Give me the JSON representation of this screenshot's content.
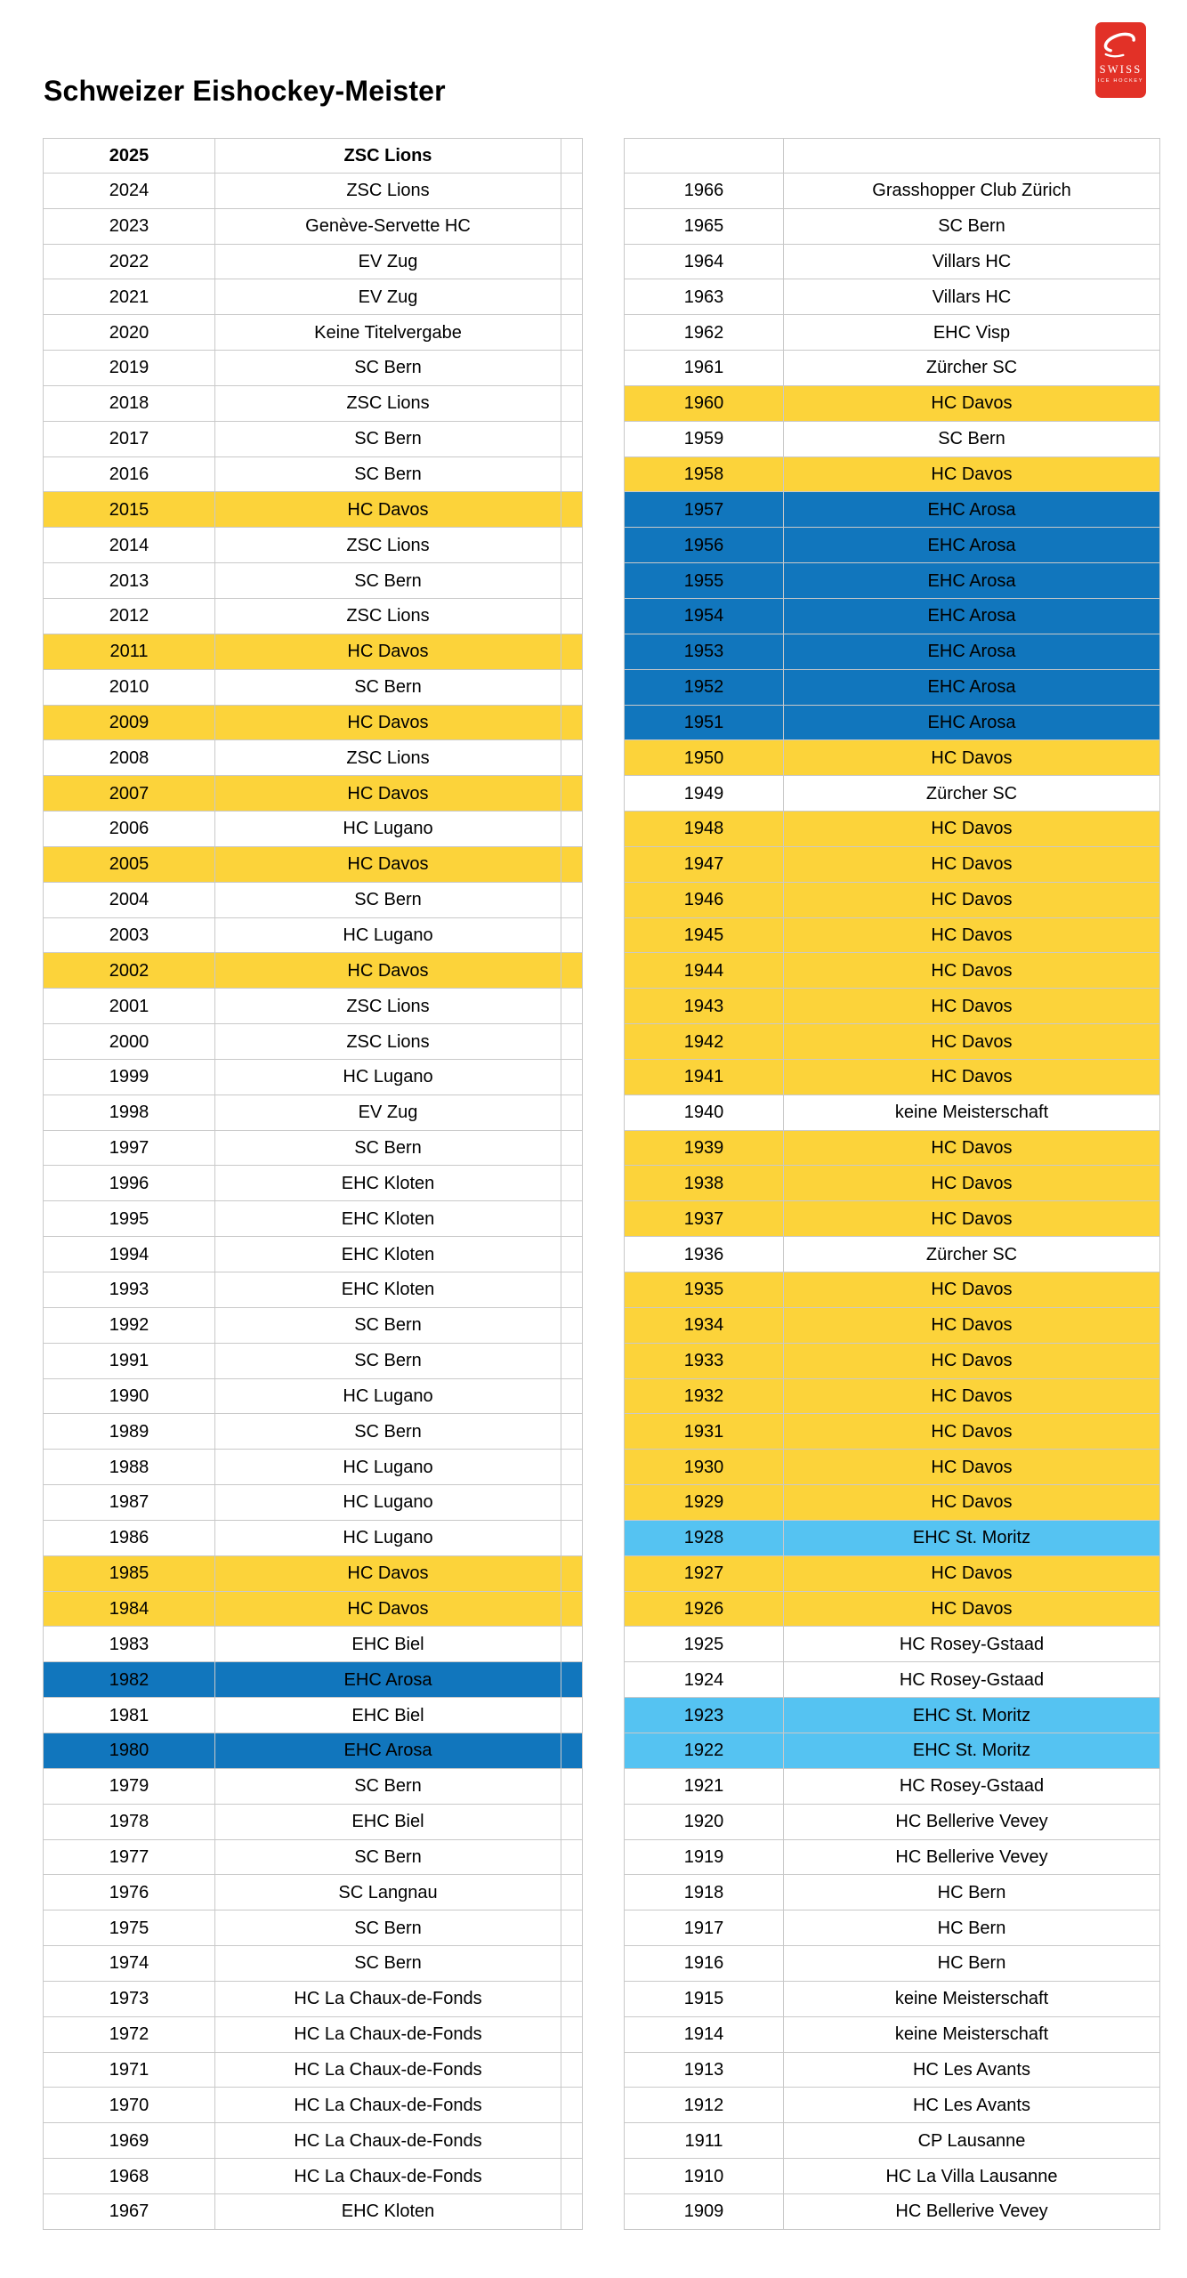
{
  "page": {
    "title": "Schweizer Eishockey-Meister",
    "background": "#ffffff"
  },
  "logo": {
    "line1": "SWISS",
    "line2": "ICE HOCKEY",
    "background": "#e23127",
    "foreground": "#ffffff"
  },
  "colors": {
    "yellow": "#fcd33a",
    "blue": "#1176bd",
    "lightblue": "#55c3f2",
    "border": "#c9c9c9",
    "text": "#000000"
  },
  "table": {
    "header_row_index": 0,
    "row_format": [
      "left_year",
      "left_club",
      "left_highlight",
      "right_year",
      "right_club",
      "right_highlight"
    ],
    "rows": [
      [
        "2025",
        "ZSC Lions",
        null,
        "",
        "",
        null
      ],
      [
        "2024",
        "ZSC Lions",
        null,
        "1966",
        "Grasshopper Club Zürich",
        null
      ],
      [
        "2023",
        "Genève-Servette HC",
        null,
        "1965",
        "SC Bern",
        null
      ],
      [
        "2022",
        "EV Zug",
        null,
        "1964",
        "Villars HC",
        null
      ],
      [
        "2021",
        "EV Zug",
        null,
        "1963",
        "Villars HC",
        null
      ],
      [
        "2020",
        "Keine Titelvergabe",
        null,
        "1962",
        "EHC Visp",
        null
      ],
      [
        "2019",
        "SC Bern",
        null,
        "1961",
        "Zürcher SC",
        null
      ],
      [
        "2018",
        "ZSC Lions",
        null,
        "1960",
        "HC Davos",
        "yellow"
      ],
      [
        "2017",
        "SC Bern",
        null,
        "1959",
        "SC Bern",
        null
      ],
      [
        "2016",
        "SC Bern",
        null,
        "1958",
        "HC Davos",
        "yellow"
      ],
      [
        "2015",
        "HC Davos",
        "yellow",
        "1957",
        "EHC Arosa",
        "blue"
      ],
      [
        "2014",
        "ZSC Lions",
        null,
        "1956",
        "EHC Arosa",
        "blue"
      ],
      [
        "2013",
        "SC Bern",
        null,
        "1955",
        "EHC Arosa",
        "blue"
      ],
      [
        "2012",
        "ZSC Lions",
        null,
        "1954",
        "EHC Arosa",
        "blue"
      ],
      [
        "2011",
        "HC Davos",
        "yellow",
        "1953",
        "EHC Arosa",
        "blue"
      ],
      [
        "2010",
        "SC Bern",
        null,
        "1952",
        "EHC Arosa",
        "blue"
      ],
      [
        "2009",
        "HC Davos",
        "yellow",
        "1951",
        "EHC Arosa",
        "blue"
      ],
      [
        "2008",
        "ZSC Lions",
        null,
        "1950",
        "HC Davos",
        "yellow"
      ],
      [
        "2007",
        "HC Davos",
        "yellow",
        "1949",
        "Zürcher SC",
        null
      ],
      [
        "2006",
        "HC Lugano",
        null,
        "1948",
        "HC Davos",
        "yellow"
      ],
      [
        "2005",
        "HC Davos",
        "yellow",
        "1947",
        "HC Davos",
        "yellow"
      ],
      [
        "2004",
        "SC Bern",
        null,
        "1946",
        "HC Davos",
        "yellow"
      ],
      [
        "2003",
        "HC Lugano",
        null,
        "1945",
        "HC Davos",
        "yellow"
      ],
      [
        "2002",
        "HC Davos",
        "yellow",
        "1944",
        "HC Davos",
        "yellow"
      ],
      [
        "2001",
        "ZSC Lions",
        null,
        "1943",
        "HC Davos",
        "yellow"
      ],
      [
        "2000",
        "ZSC Lions",
        null,
        "1942",
        "HC Davos",
        "yellow"
      ],
      [
        "1999",
        "HC Lugano",
        null,
        "1941",
        "HC Davos",
        "yellow"
      ],
      [
        "1998",
        "EV Zug",
        null,
        "1940",
        "keine Meisterschaft",
        null
      ],
      [
        "1997",
        "SC Bern",
        null,
        "1939",
        "HC Davos",
        "yellow"
      ],
      [
        "1996",
        "EHC Kloten",
        null,
        "1938",
        "HC Davos",
        "yellow"
      ],
      [
        "1995",
        "EHC Kloten",
        null,
        "1937",
        "HC Davos",
        "yellow"
      ],
      [
        "1994",
        "EHC Kloten",
        null,
        "1936",
        "Zürcher SC",
        null
      ],
      [
        "1993",
        "EHC Kloten",
        null,
        "1935",
        "HC Davos",
        "yellow"
      ],
      [
        "1992",
        "SC Bern",
        null,
        "1934",
        "HC Davos",
        "yellow"
      ],
      [
        "1991",
        "SC Bern",
        null,
        "1933",
        "HC Davos",
        "yellow"
      ],
      [
        "1990",
        "HC Lugano",
        null,
        "1932",
        "HC Davos",
        "yellow"
      ],
      [
        "1989",
        "SC Bern",
        null,
        "1931",
        "HC Davos",
        "yellow"
      ],
      [
        "1988",
        "HC Lugano",
        null,
        "1930",
        "HC Davos",
        "yellow"
      ],
      [
        "1987",
        "HC Lugano",
        null,
        "1929",
        "HC Davos",
        "yellow"
      ],
      [
        "1986",
        "HC Lugano",
        null,
        "1928",
        "EHC St. Moritz",
        "lightblue"
      ],
      [
        "1985",
        "HC Davos",
        "yellow",
        "1927",
        "HC Davos",
        "yellow"
      ],
      [
        "1984",
        "HC Davos",
        "yellow",
        "1926",
        "HC Davos",
        "yellow"
      ],
      [
        "1983",
        "EHC Biel",
        null,
        "1925",
        "HC Rosey-Gstaad",
        null
      ],
      [
        "1982",
        "EHC Arosa",
        "blue",
        "1924",
        "HC Rosey-Gstaad",
        null
      ],
      [
        "1981",
        "EHC Biel",
        null,
        "1923",
        "EHC St. Moritz",
        "lightblue"
      ],
      [
        "1980",
        "EHC Arosa",
        "blue",
        "1922",
        "EHC St. Moritz",
        "lightblue"
      ],
      [
        "1979",
        "SC Bern",
        null,
        "1921",
        "HC Rosey-Gstaad",
        null
      ],
      [
        "1978",
        "EHC Biel",
        null,
        "1920",
        "HC Bellerive Vevey",
        null
      ],
      [
        "1977",
        "SC Bern",
        null,
        "1919",
        "HC Bellerive Vevey",
        null
      ],
      [
        "1976",
        "SC Langnau",
        null,
        "1918",
        "HC Bern",
        null
      ],
      [
        "1975",
        "SC Bern",
        null,
        "1917",
        "HC Bern",
        null
      ],
      [
        "1974",
        "SC Bern",
        null,
        "1916",
        "HC Bern",
        null
      ],
      [
        "1973",
        "HC La Chaux-de-Fonds",
        null,
        "1915",
        "keine Meisterschaft",
        null
      ],
      [
        "1972",
        "HC La Chaux-de-Fonds",
        null,
        "1914",
        "keine Meisterschaft",
        null
      ],
      [
        "1971",
        "HC La Chaux-de-Fonds",
        null,
        "1913",
        "HC Les Avants",
        null
      ],
      [
        "1970",
        "HC La Chaux-de-Fonds",
        null,
        "1912",
        "HC Les Avants",
        null
      ],
      [
        "1969",
        "HC La Chaux-de-Fonds",
        null,
        "1911",
        "CP Lausanne",
        null
      ],
      [
        "1968",
        "HC La Chaux-de-Fonds",
        null,
        "1910",
        "HC La Villa Lausanne",
        null
      ],
      [
        "1967",
        "EHC Kloten",
        null,
        "1909",
        "HC Bellerive Vevey",
        null
      ]
    ]
  }
}
